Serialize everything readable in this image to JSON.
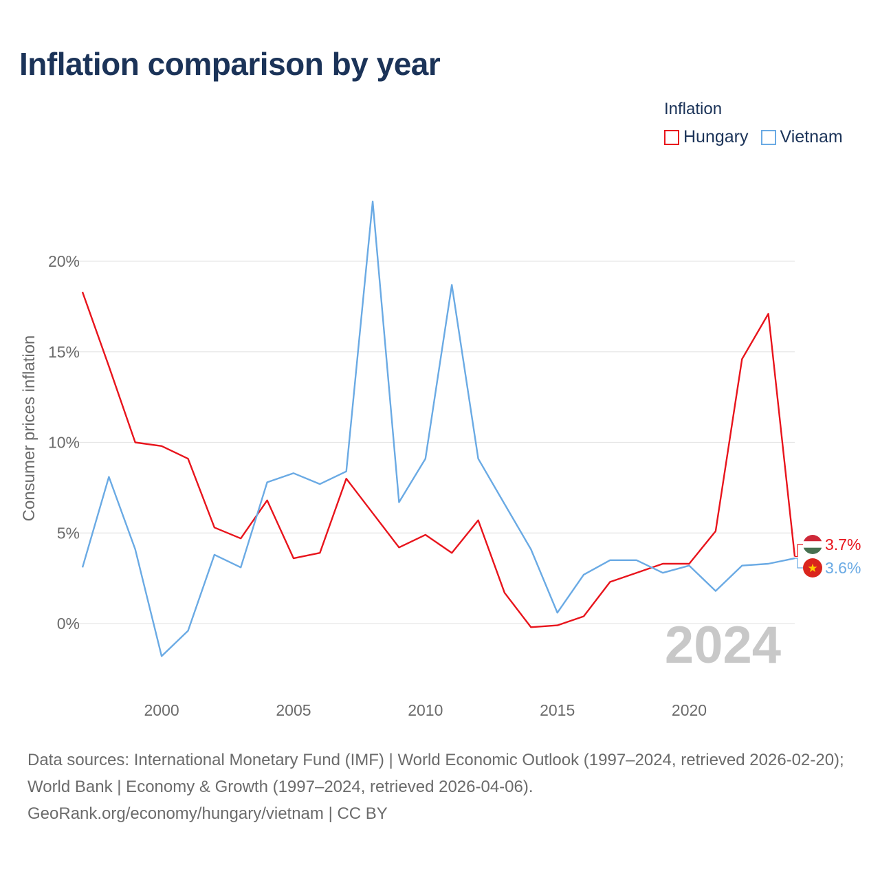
{
  "title": "Inflation comparison by year",
  "legend": {
    "title": "Inflation",
    "items": [
      {
        "label": "Hungary",
        "color": "#e8141c"
      },
      {
        "label": "Vietnam",
        "color": "#6aaae4"
      }
    ]
  },
  "chart_data": {
    "type": "line",
    "title": "Inflation comparison by year",
    "xlabel": "",
    "ylabel": "Consumer prices inflation",
    "x": [
      1997,
      1998,
      1999,
      2000,
      2001,
      2002,
      2003,
      2004,
      2005,
      2006,
      2007,
      2008,
      2009,
      2010,
      2011,
      2012,
      2013,
      2014,
      2015,
      2016,
      2017,
      2018,
      2019,
      2020,
      2021,
      2022,
      2023,
      2024
    ],
    "xlim": [
      1997,
      2024
    ],
    "ylim": [
      -4,
      24
    ],
    "yticks": [
      0,
      5,
      10,
      15,
      20
    ],
    "ytick_labels": [
      "0%",
      "5%",
      "10%",
      "15%",
      "20%"
    ],
    "xticks": [
      2000,
      2005,
      2010,
      2015,
      2020
    ],
    "xtick_labels": [
      "2000",
      "2005",
      "2010",
      "2015",
      "2020"
    ],
    "grid": true,
    "legend_position": "top-right",
    "year_watermark": "2024",
    "series": [
      {
        "name": "Hungary",
        "color": "#e8141c",
        "end_label": "3.7%",
        "values": [
          18.3,
          14.2,
          10.0,
          9.8,
          9.1,
          5.3,
          4.7,
          6.8,
          3.6,
          3.9,
          8.0,
          6.1,
          4.2,
          4.9,
          3.9,
          5.7,
          1.7,
          -0.2,
          -0.1,
          0.4,
          2.3,
          2.8,
          3.3,
          3.3,
          5.1,
          14.6,
          17.1,
          3.7
        ]
      },
      {
        "name": "Vietnam",
        "color": "#6aaae4",
        "end_label": "3.6%",
        "values": [
          3.1,
          8.1,
          4.1,
          -1.8,
          -0.4,
          3.8,
          3.1,
          7.8,
          8.3,
          7.7,
          8.4,
          23.3,
          6.7,
          9.1,
          18.7,
          9.1,
          6.6,
          4.1,
          0.6,
          2.7,
          3.5,
          3.5,
          2.8,
          3.2,
          1.8,
          3.2,
          3.3,
          3.6
        ]
      }
    ]
  },
  "footer": {
    "sources": "Data sources: International Monetary Fund (IMF) | World Economic Outlook (1997–2024, retrieved 2026-02-20); World Bank | Economy & Growth (1997–2024, retrieved 2026-04-06).",
    "attribution": "GeoRank.org/economy/hungary/vietnam | CC BY"
  }
}
